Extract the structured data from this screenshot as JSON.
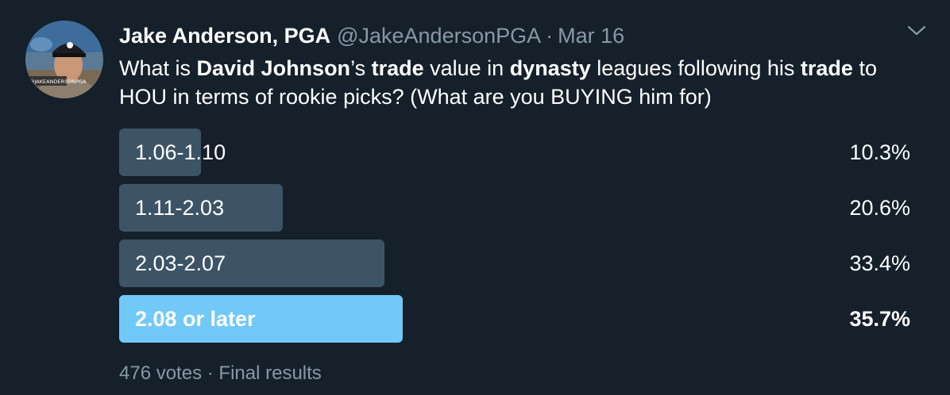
{
  "author": {
    "display_name": "Jake Anderson, PGA",
    "handle": "@JakeAndersonPGA",
    "separator": "·",
    "date": "Mar 16",
    "avatar_text": "@JAKEANDERSONPGA"
  },
  "tweet": {
    "segments": [
      {
        "text": "What is ",
        "bold": false
      },
      {
        "text": "David Johnson",
        "bold": true
      },
      {
        "text": "’s ",
        "bold": false
      },
      {
        "text": "trade",
        "bold": true
      },
      {
        "text": " value in ",
        "bold": false
      },
      {
        "text": "dynasty",
        "bold": true
      },
      {
        "text": " leagues following his ",
        "bold": false
      },
      {
        "text": "trade",
        "bold": true
      },
      {
        "text": " to HOU in terms of rookie picks? (What are you BUYING him for)",
        "bold": false
      }
    ]
  },
  "poll": {
    "options": [
      {
        "label": "1.06-1.10",
        "percent_text": "10.3%",
        "percent": 10.3,
        "winner": false
      },
      {
        "label": "1.11-2.03",
        "percent_text": "20.6%",
        "percent": 20.6,
        "winner": false
      },
      {
        "label": "2.03-2.07",
        "percent_text": "33.4%",
        "percent": 33.4,
        "winner": false
      },
      {
        "label": "2.08 or later",
        "percent_text": "35.7%",
        "percent": 35.7,
        "winner": true
      }
    ],
    "votes": "476 votes",
    "separator": "·",
    "status": "Final results"
  },
  "colors": {
    "background": "#15202b",
    "bar": "#3d5466",
    "winner_bar": "#71c9f8",
    "secondary_text": "#8899a6"
  },
  "icons": {
    "menu": "chevron-down-icon"
  }
}
